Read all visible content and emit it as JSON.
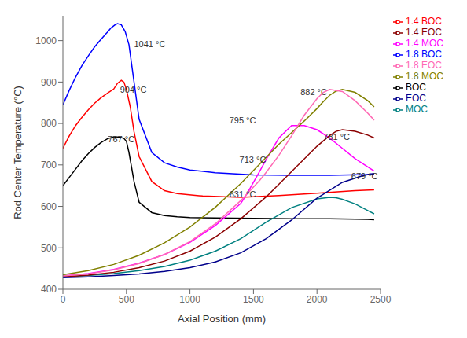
{
  "chart_data": {
    "type": "line",
    "xlabel": "Axial Position (mm)",
    "ylabel": "Rod Center Temperature (°C)",
    "xlim": [
      0,
      2500
    ],
    "ylim": [
      400,
      1060
    ],
    "xticks": [
      0,
      500,
      1000,
      1500,
      2000,
      2500
    ],
    "yticks": [
      400,
      500,
      600,
      700,
      800,
      900,
      1000
    ],
    "grid": false,
    "legend": "upper right",
    "annotations": [
      {
        "text": "1041 °C",
        "x": 560,
        "y": 985
      },
      {
        "text": "904 °C",
        "x": 450,
        "y": 875
      },
      {
        "text": "767 °C",
        "x": 355,
        "y": 755
      },
      {
        "text": "795 °C",
        "x": 1310,
        "y": 800
      },
      {
        "text": "713 °C",
        "x": 1390,
        "y": 705
      },
      {
        "text": "882 °C",
        "x": 1870,
        "y": 868
      },
      {
        "text": "781 °C",
        "x": 2050,
        "y": 760
      },
      {
        "text": "679 °C",
        "x": 2270,
        "y": 665
      },
      {
        "text": "631 °C",
        "x": 1310,
        "y": 622
      }
    ],
    "series": [
      {
        "name": "BOC",
        "color": "#000000",
        "x": [
          0,
          50,
          100,
          150,
          200,
          250,
          300,
          350,
          400,
          450,
          480,
          500,
          520,
          560,
          600,
          700,
          800,
          900,
          1000,
          1200,
          1500,
          1800,
          2100,
          2400,
          2450
        ],
        "values": [
          650,
          670,
          690,
          710,
          727,
          742,
          754,
          763,
          768,
          767,
          764,
          757,
          730,
          660,
          610,
          585,
          578,
          575,
          573,
          572,
          571,
          570,
          570,
          569,
          568
        ]
      },
      {
        "name": "1.4 BOC",
        "color": "#ff0000",
        "x": [
          0,
          50,
          100,
          150,
          200,
          250,
          300,
          350,
          400,
          430,
          460,
          480,
          500,
          530,
          560,
          600,
          700,
          800,
          900,
          1100,
          1400,
          1700,
          2000,
          2300,
          2450
        ],
        "values": [
          740,
          770,
          795,
          815,
          833,
          849,
          862,
          873,
          883,
          897,
          904,
          900,
          882,
          840,
          780,
          720,
          660,
          638,
          631,
          625,
          622,
          626,
          632,
          638,
          640
        ]
      },
      {
        "name": "1.8 BOC",
        "color": "#0000ff",
        "x": [
          0,
          50,
          100,
          150,
          200,
          250,
          300,
          350,
          380,
          410,
          430,
          460,
          490,
          520,
          560,
          600,
          700,
          800,
          900,
          1000,
          1200,
          1500,
          1800,
          2100,
          2400,
          2450
        ],
        "values": [
          845,
          880,
          912,
          940,
          963,
          985,
          1003,
          1020,
          1031,
          1038,
          1041,
          1038,
          1022,
          990,
          900,
          810,
          730,
          705,
          695,
          688,
          681,
          676,
          675,
          675,
          677,
          679
        ]
      },
      {
        "name": "MOC",
        "color": "#008080",
        "x": [
          0,
          200,
          400,
          600,
          800,
          1000,
          1200,
          1400,
          1600,
          1800,
          2000,
          2100,
          2150,
          2200,
          2300,
          2400,
          2450
        ],
        "values": [
          430,
          433,
          438,
          445,
          455,
          470,
          492,
          522,
          562,
          597,
          618,
          622,
          621,
          617,
          606,
          590,
          582
        ]
      },
      {
        "name": "1.4 MOC",
        "color": "#ff00ff",
        "x": [
          0,
          200,
          400,
          600,
          800,
          1000,
          1200,
          1400,
          1450,
          1500,
          1550,
          1600,
          1700,
          1800,
          1900,
          2000,
          2100,
          2200,
          2300,
          2400,
          2450
        ],
        "values": [
          432,
          438,
          448,
          463,
          484,
          513,
          554,
          607,
          631,
          658,
          685,
          713,
          765,
          795,
          795,
          785,
          765,
          740,
          715,
          695,
          685
        ]
      },
      {
        "name": "1.8 MOC",
        "color": "#808000",
        "x": [
          0,
          200,
          400,
          600,
          800,
          1000,
          1200,
          1400,
          1600,
          1700,
          1800,
          1900,
          2000,
          2050,
          2100,
          2150,
          2200,
          2300,
          2400,
          2450
        ],
        "values": [
          435,
          445,
          460,
          482,
          512,
          550,
          598,
          655,
          718,
          750,
          778,
          806,
          836,
          853,
          868,
          878,
          882,
          875,
          855,
          840
        ]
      },
      {
        "name": "EOC",
        "color": "#00008b",
        "x": [
          0,
          200,
          400,
          600,
          800,
          1000,
          1200,
          1400,
          1600,
          1800,
          2000,
          2200,
          2350,
          2400,
          2450
        ],
        "values": [
          428,
          430,
          433,
          437,
          443,
          452,
          466,
          488,
          522,
          567,
          620,
          658,
          673,
          677,
          679
        ]
      },
      {
        "name": "1.4 EOC",
        "color": "#8b0000",
        "x": [
          0,
          200,
          400,
          600,
          800,
          1000,
          1200,
          1400,
          1600,
          1800,
          2000,
          2100,
          2150,
          2200,
          2300,
          2400,
          2450
        ],
        "values": [
          430,
          434,
          441,
          452,
          468,
          492,
          526,
          570,
          623,
          684,
          745,
          771,
          781,
          785,
          781,
          772,
          765
        ]
      },
      {
        "name": "1.8 EOC",
        "color": "#ff69b4",
        "x": [
          0,
          200,
          400,
          600,
          800,
          1000,
          1200,
          1400,
          1550,
          1600,
          1700,
          1800,
          1900,
          2000,
          2050,
          2100,
          2200,
          2300,
          2400,
          2450
        ],
        "values": [
          432,
          437,
          447,
          462,
          484,
          515,
          558,
          614,
          663,
          682,
          723,
          770,
          820,
          860,
          875,
          882,
          877,
          855,
          825,
          808
        ]
      }
    ]
  }
}
